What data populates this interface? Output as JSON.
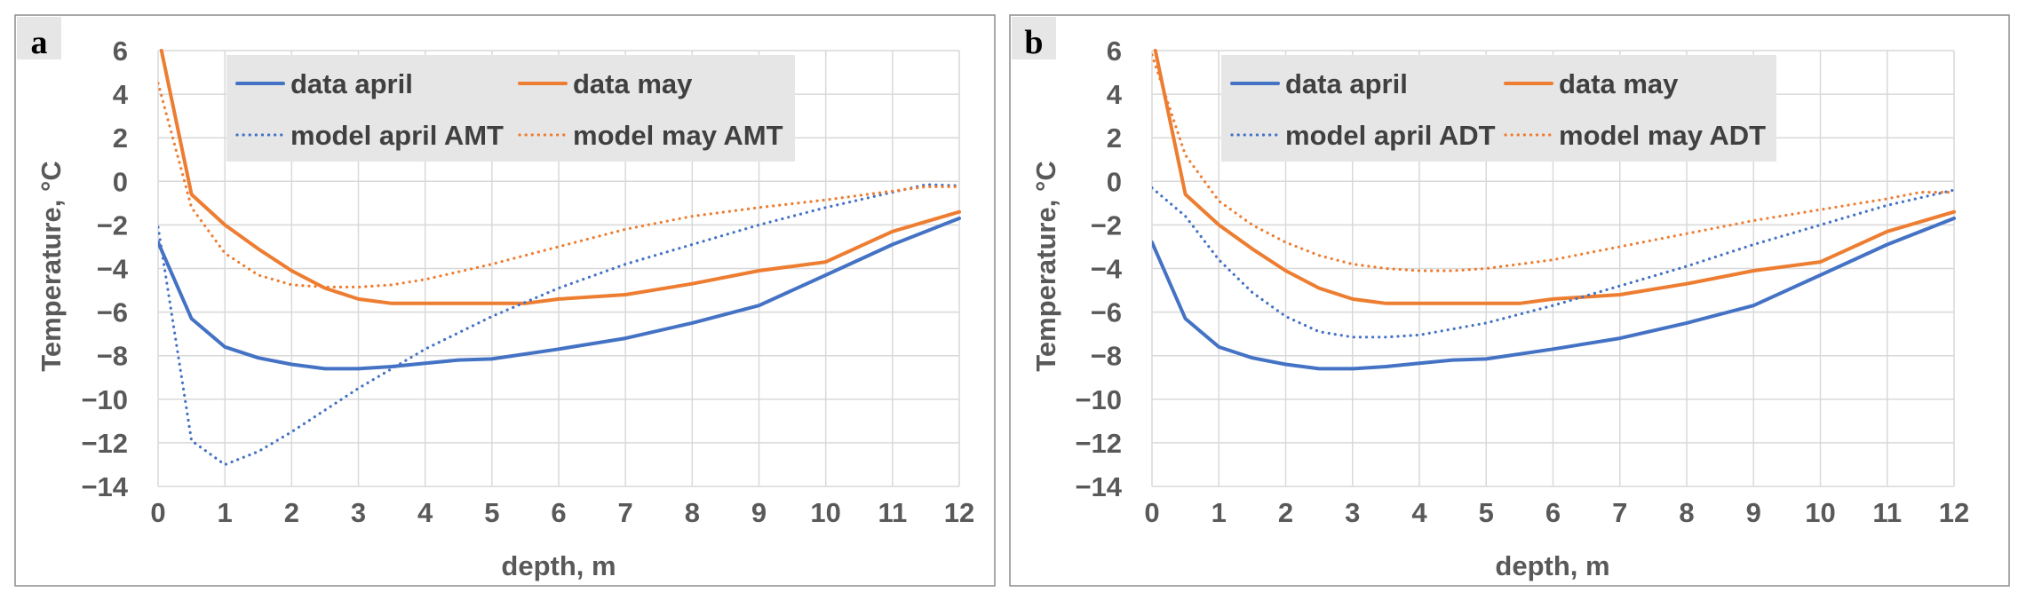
{
  "chart_data": [
    {
      "type": "line",
      "panel_label": "a",
      "xlabel": "depth, m",
      "ylabel": "Temperature, °C",
      "xlim": [
        0,
        12
      ],
      "ylim": [
        -14,
        6
      ],
      "xticks": [
        "0",
        "1",
        "2",
        "3",
        "4",
        "5",
        "6",
        "7",
        "8",
        "9",
        "10",
        "11",
        "12"
      ],
      "yticks": [
        "6",
        "4",
        "2",
        "0",
        "-2",
        "-4",
        "-6",
        "-8",
        "-10",
        "-12",
        "-14"
      ],
      "grid": true,
      "legend_position": "top",
      "series": [
        {
          "name": "data april",
          "style": "solid",
          "color": "#4472C4",
          "x": [
            0,
            0.5,
            1,
            1.5,
            2,
            2.5,
            3,
            3.5,
            4,
            4.5,
            5,
            6,
            7,
            8,
            9,
            10,
            11,
            12
          ],
          "y": [
            -2.8,
            -6.3,
            -7.6,
            -8.1,
            -8.4,
            -8.6,
            -8.6,
            -8.5,
            -8.35,
            -8.2,
            -8.15,
            -7.7,
            -7.2,
            -6.5,
            -5.7,
            -4.3,
            -2.9,
            -1.7
          ]
        },
        {
          "name": "data may",
          "style": "solid",
          "color": "#ED7D31",
          "x": [
            0.05,
            0.5,
            1,
            1.5,
            2,
            2.5,
            3,
            3.5,
            4,
            4.5,
            5,
            5.5,
            6,
            7,
            8,
            9,
            10,
            11,
            12
          ],
          "y": [
            6,
            -0.6,
            -2.0,
            -3.1,
            -4.1,
            -4.9,
            -5.4,
            -5.6,
            -5.6,
            -5.6,
            -5.6,
            -5.6,
            -5.4,
            -5.2,
            -4.7,
            -4.1,
            -3.7,
            -2.3,
            -1.4
          ]
        },
        {
          "name": "model april AMT",
          "style": "dotted",
          "color": "#4472C4",
          "x": [
            0,
            0.5,
            1,
            1.5,
            2,
            3,
            4,
            5,
            6,
            7,
            8,
            9,
            10,
            11,
            11.5,
            12
          ],
          "y": [
            -2.1,
            -11.9,
            -13.0,
            -12.4,
            -11.5,
            -9.5,
            -7.7,
            -6.2,
            -4.9,
            -3.8,
            -2.9,
            -2.0,
            -1.2,
            -0.5,
            -0.15,
            -0.2
          ]
        },
        {
          "name": "model may AMT",
          "style": "dotted",
          "color": "#ED7D31",
          "x": [
            0,
            0.5,
            1,
            1.5,
            2,
            2.5,
            3,
            3.5,
            4,
            5,
            6,
            7,
            8,
            9,
            10,
            11,
            11.5,
            12
          ],
          "y": [
            4.5,
            -1.2,
            -3.3,
            -4.3,
            -4.75,
            -4.85,
            -4.85,
            -4.75,
            -4.5,
            -3.8,
            -3.0,
            -2.2,
            -1.6,
            -1.2,
            -0.85,
            -0.45,
            -0.25,
            -0.25
          ]
        }
      ],
      "legend": {
        "entries": [
          "data april",
          "data may",
          "model april AMT",
          "model may AMT"
        ]
      }
    },
    {
      "type": "line",
      "panel_label": "b",
      "xlabel": "depth, m",
      "ylabel": "Temperature, °C",
      "xlim": [
        0,
        12
      ],
      "ylim": [
        -14,
        6
      ],
      "xticks": [
        "0",
        "1",
        "2",
        "3",
        "4",
        "5",
        "6",
        "7",
        "8",
        "9",
        "10",
        "11",
        "12"
      ],
      "yticks": [
        "6",
        "4",
        "2",
        "0",
        "-2",
        "-4",
        "-6",
        "-8",
        "-10",
        "-12",
        "-14"
      ],
      "grid": true,
      "legend_position": "top",
      "series": [
        {
          "name": "data april",
          "style": "solid",
          "color": "#4472C4",
          "x": [
            0,
            0.5,
            1,
            1.5,
            2,
            2.5,
            3,
            3.5,
            4,
            4.5,
            5,
            6,
            7,
            8,
            9,
            10,
            11,
            12
          ],
          "y": [
            -2.8,
            -6.3,
            -7.6,
            -8.1,
            -8.4,
            -8.6,
            -8.6,
            -8.5,
            -8.35,
            -8.2,
            -8.15,
            -7.7,
            -7.2,
            -6.5,
            -5.7,
            -4.3,
            -2.9,
            -1.7
          ]
        },
        {
          "name": "data may",
          "style": "solid",
          "color": "#ED7D31",
          "x": [
            0.05,
            0.5,
            1,
            1.5,
            2,
            2.5,
            3,
            3.5,
            4,
            4.5,
            5,
            5.5,
            6,
            7,
            8,
            9,
            10,
            11,
            12
          ],
          "y": [
            6,
            -0.6,
            -2.0,
            -3.1,
            -4.1,
            -4.9,
            -5.4,
            -5.6,
            -5.6,
            -5.6,
            -5.6,
            -5.6,
            -5.4,
            -5.2,
            -4.7,
            -4.1,
            -3.7,
            -2.3,
            -1.4
          ]
        },
        {
          "name": "model april ADT",
          "style": "dotted",
          "color": "#4472C4",
          "x": [
            0,
            0.5,
            1,
            1.5,
            2,
            2.5,
            3,
            3.5,
            4,
            5,
            6,
            7,
            8,
            9,
            10,
            11,
            12
          ],
          "y": [
            -0.3,
            -1.6,
            -3.6,
            -5.1,
            -6.2,
            -6.9,
            -7.15,
            -7.15,
            -7.05,
            -6.5,
            -5.7,
            -4.8,
            -3.9,
            -2.9,
            -2.0,
            -1.1,
            -0.4
          ]
        },
        {
          "name": "model may ADT",
          "style": "dotted",
          "color": "#ED7D31",
          "x": [
            0,
            0.5,
            1,
            1.5,
            2,
            2.5,
            3,
            3.5,
            4,
            4.5,
            5,
            6,
            7,
            8,
            9,
            10,
            11,
            11.5,
            12
          ],
          "y": [
            5.8,
            1.2,
            -0.9,
            -2.0,
            -2.8,
            -3.4,
            -3.8,
            -4.0,
            -4.1,
            -4.1,
            -4.0,
            -3.6,
            -3.0,
            -2.4,
            -1.8,
            -1.3,
            -0.8,
            -0.5,
            -0.5
          ]
        }
      ],
      "legend": {
        "entries": [
          "data april",
          "data may",
          "model april ADT",
          "model may ADT"
        ]
      }
    }
  ]
}
